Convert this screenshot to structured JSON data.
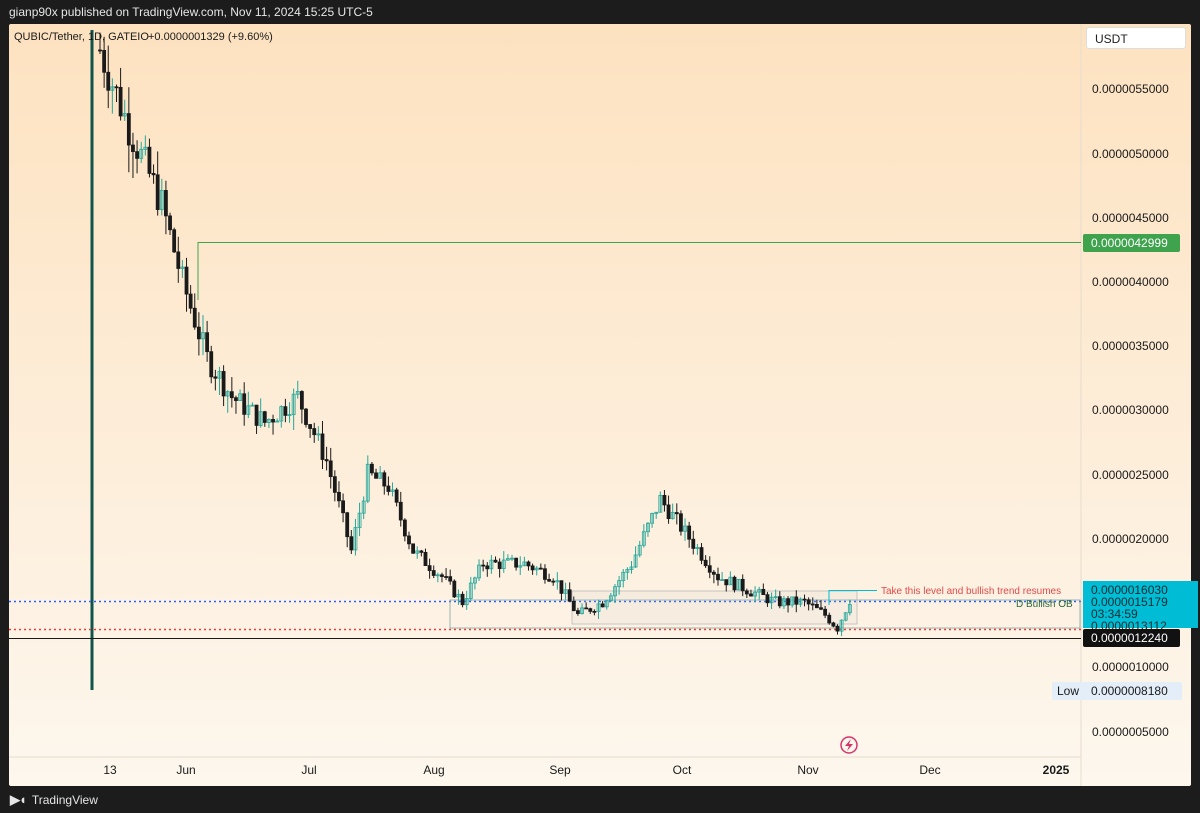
{
  "header": {
    "text": "gianp90x published on TradingView.com, Nov 11, 2024 15:25 UTC-5"
  },
  "footer": {
    "brand": "TradingView",
    "logo": "tv-logo-icon"
  },
  "legend": {
    "symbol": "QUBIC/Tether, 1D, GATEIO",
    "change": "+0.0000001329 (+9.60%)"
  },
  "currency_button": "USDT",
  "colors": {
    "up": "#26a69a",
    "down": "#1a1a1a",
    "green_label": "#3fa34d",
    "cyan_label": "#00bcd4",
    "blue_dots": "#2962ff",
    "red_dots": "#ef3b3b",
    "annotation_red": "#e34949"
  },
  "price_scale": {
    "labels": [
      "0.0000055000",
      "0.0000050000",
      "0.0000045000",
      "0.0000040000",
      "0.0000035000",
      "0.0000030000",
      "0.0000025000",
      "0.0000020000",
      "0.0000010000",
      "0.0000005000"
    ]
  },
  "badges": {
    "level_green": "0.0000042999",
    "level_cyan_top": "0.0000016030",
    "last_price": "0.0000015179",
    "countdown": "03:34:59",
    "level_cyan_low": "0.0000013112",
    "level_black": "0.0000012240",
    "low_label": "Low",
    "low_value": "0.0000008180"
  },
  "time_axis": {
    "labels": [
      "13",
      "Jun",
      "Jul",
      "Aug",
      "Sep",
      "Oct",
      "Nov",
      "Dec",
      "2025"
    ]
  },
  "annotations": {
    "trend_note": "Take this level and bullish trend resumes",
    "bullish_ob": "D Bullish OB"
  },
  "chart_data": {
    "type": "candlestick",
    "title": "QUBIC/Tether, 1D, GATEIO",
    "ylabel": "USDT",
    "xlabel": "",
    "ylim": [
      3.5e-07,
      6e-06
    ],
    "x_range": [
      "2024-05-11",
      "2025-01-01"
    ],
    "x_ticks": [
      "13",
      "Jun",
      "Jul",
      "Aug",
      "Sep",
      "Oct",
      "Nov",
      "Dec",
      "2025"
    ],
    "horizontal_levels": [
      {
        "name": "resistance",
        "value": 4.2999e-06,
        "color": "#3fa34d"
      },
      {
        "name": "trend level",
        "value": 1.603e-06,
        "color": "#00bcd4"
      },
      {
        "name": "last price",
        "value": 1.5179e-06,
        "color": "#2962ff"
      },
      {
        "name": "bullish OB low",
        "value": 1.3112e-06,
        "color": "#00bcd4"
      },
      {
        "name": "support",
        "value": 1.224e-06,
        "color": "#ef3b3b"
      },
      {
        "name": "low",
        "value": 8.18e-07,
        "color": "#26a69a"
      }
    ],
    "trend_anchors": [
      {
        "date": "2024-05-13",
        "close": 5.8e-06
      },
      {
        "date": "2024-05-20",
        "close": 5.2e-06
      },
      {
        "date": "2024-05-28",
        "close": 4.6e-06
      },
      {
        "date": "2024-06-02",
        "close": 4e-06
      },
      {
        "date": "2024-06-08",
        "close": 3.4e-06
      },
      {
        "date": "2024-06-14",
        "close": 3.1e-06
      },
      {
        "date": "2024-06-22",
        "close": 2.9e-06
      },
      {
        "date": "2024-06-30",
        "close": 3.1e-06
      },
      {
        "date": "2024-07-07",
        "close": 2.6e-06
      },
      {
        "date": "2024-07-13",
        "close": 1.9e-06
      },
      {
        "date": "2024-07-17",
        "close": 2.5e-06
      },
      {
        "date": "2024-07-22",
        "close": 2.4e-06
      },
      {
        "date": "2024-07-28",
        "close": 1.9e-06
      },
      {
        "date": "2024-08-04",
        "close": 1.7e-06
      },
      {
        "date": "2024-08-09",
        "close": 1.5e-06
      },
      {
        "date": "2024-08-14",
        "close": 1.8e-06
      },
      {
        "date": "2024-08-24",
        "close": 1.8e-06
      },
      {
        "date": "2024-08-31",
        "close": 1.7e-06
      },
      {
        "date": "2024-09-06",
        "close": 1.4e-06
      },
      {
        "date": "2024-09-12",
        "close": 1.5e-06
      },
      {
        "date": "2024-09-19",
        "close": 1.8e-06
      },
      {
        "date": "2024-09-26",
        "close": 2.3e-06
      },
      {
        "date": "2024-10-03",
        "close": 2e-06
      },
      {
        "date": "2024-10-10",
        "close": 1.7e-06
      },
      {
        "date": "2024-10-17",
        "close": 1.6e-06
      },
      {
        "date": "2024-10-24",
        "close": 1.5e-06
      },
      {
        "date": "2024-10-31",
        "close": 1.5e-06
      },
      {
        "date": "2024-11-05",
        "close": 1.4e-06
      },
      {
        "date": "2024-11-08",
        "close": 1.3e-06
      },
      {
        "date": "2024-11-11",
        "close": 1.5179e-06
      }
    ]
  }
}
